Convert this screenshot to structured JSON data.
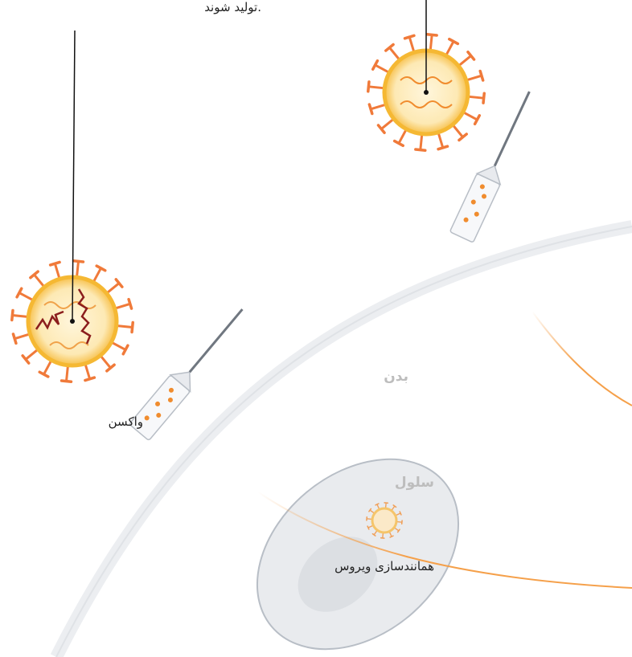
{
  "labels": {
    "top_note": "تولید شوند.",
    "vaccine": "واکسن",
    "body": "بدن",
    "cell": "سلول",
    "replication": "همانندسازی ویروس"
  }
}
